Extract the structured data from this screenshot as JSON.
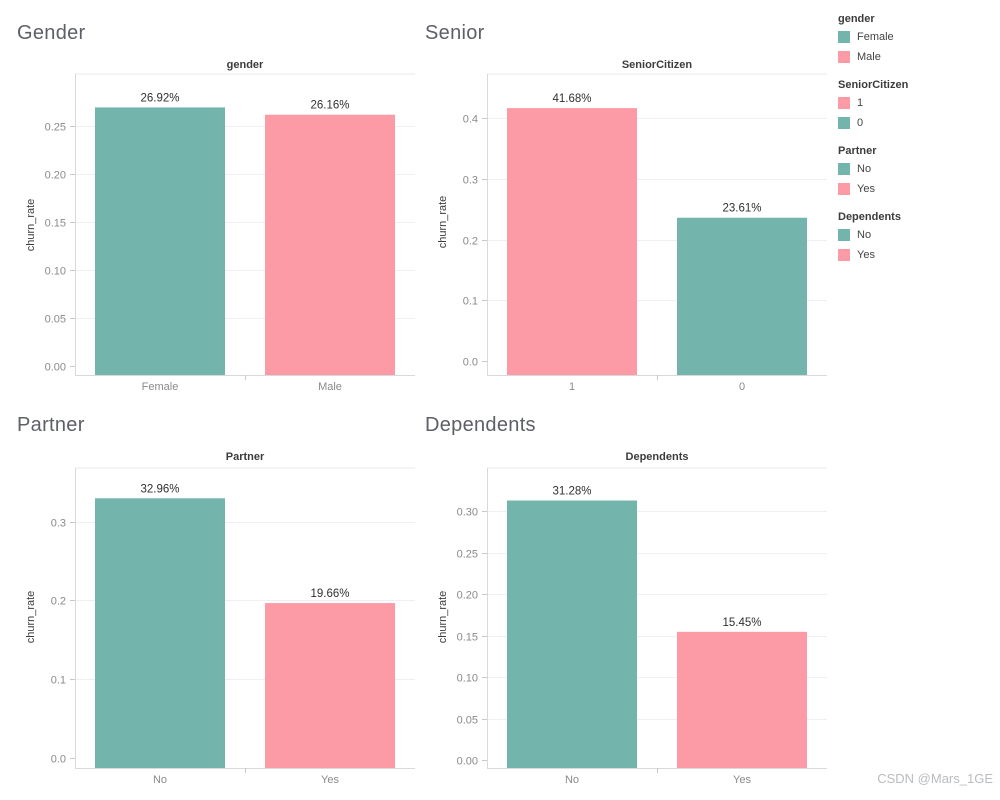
{
  "page": {
    "background": "#ffffff",
    "watermark": "CSDN @Mars_1GE"
  },
  "colors": {
    "teal": "#73b5ad",
    "pink": "#fc9aa6",
    "gridline": "#f0f0f2",
    "axis_line": "#d9d9db",
    "tick_mark": "#c9c9cb",
    "tick_label": "#8a8a8a",
    "bar_label": "#303030",
    "title_gray": "#5d6067"
  },
  "chart_data": [
    {
      "type": "bar",
      "panel_title": "Gender",
      "axis_title": "gender",
      "ylabel": "churn_rate",
      "categories": [
        "Female",
        "Male"
      ],
      "values": [
        0.2692,
        0.2616
      ],
      "bar_labels": [
        "26.92%",
        "26.16%"
      ],
      "bar_colors": [
        "#73b5ad",
        "#fc9aa6"
      ],
      "ylim": [
        0,
        0.304
      ],
      "grid": "horizontal",
      "yticks": [
        {
          "v": 0.0,
          "label": "0.00"
        },
        {
          "v": 0.05,
          "label": "0.05"
        },
        {
          "v": 0.1,
          "label": "0.10"
        },
        {
          "v": 0.15,
          "label": "0.15"
        },
        {
          "v": 0.2,
          "label": "0.20"
        },
        {
          "v": 0.25,
          "label": "0.25"
        }
      ]
    },
    {
      "type": "bar",
      "panel_title": "Senior",
      "axis_title": "SeniorCitizen",
      "ylabel": "churn_rate",
      "categories": [
        "1",
        "0"
      ],
      "values": [
        0.4168,
        0.2361
      ],
      "bar_labels": [
        "41.68%",
        "23.61%"
      ],
      "bar_colors": [
        "#fc9aa6",
        "#73b5ad"
      ],
      "ylim": [
        0,
        0.473
      ],
      "grid": "horizontal",
      "yticks": [
        {
          "v": 0.0,
          "label": "0.0"
        },
        {
          "v": 0.1,
          "label": "0.1"
        },
        {
          "v": 0.2,
          "label": "0.2"
        },
        {
          "v": 0.3,
          "label": "0.3"
        },
        {
          "v": 0.4,
          "label": "0.4"
        }
      ]
    },
    {
      "type": "bar",
      "panel_title": "Partner",
      "axis_title": "Partner",
      "ylabel": "churn_rate",
      "categories": [
        "No",
        "Yes"
      ],
      "values": [
        0.3296,
        0.1966
      ],
      "bar_labels": [
        "32.96%",
        "19.66%"
      ],
      "bar_colors": [
        "#73b5ad",
        "#fc9aa6"
      ],
      "ylim": [
        0,
        0.368
      ],
      "grid": "horizontal",
      "yticks": [
        {
          "v": 0.0,
          "label": "0.0"
        },
        {
          "v": 0.1,
          "label": "0.1"
        },
        {
          "v": 0.2,
          "label": "0.2"
        },
        {
          "v": 0.3,
          "label": "0.3"
        }
      ]
    },
    {
      "type": "bar",
      "panel_title": "Dependents",
      "axis_title": "Dependents",
      "ylabel": "churn_rate",
      "categories": [
        "No",
        "Yes"
      ],
      "values": [
        0.3128,
        0.1545
      ],
      "bar_labels": [
        "31.28%",
        "15.45%"
      ],
      "bar_colors": [
        "#73b5ad",
        "#fc9aa6"
      ],
      "ylim": [
        0,
        0.352
      ],
      "grid": "horizontal",
      "yticks": [
        {
          "v": 0.0,
          "label": "0.00"
        },
        {
          "v": 0.05,
          "label": "0.05"
        },
        {
          "v": 0.1,
          "label": "0.10"
        },
        {
          "v": 0.15,
          "label": "0.15"
        },
        {
          "v": 0.2,
          "label": "0.20"
        },
        {
          "v": 0.25,
          "label": "0.25"
        },
        {
          "v": 0.3,
          "label": "0.30"
        }
      ]
    }
  ],
  "legend": {
    "position": "right",
    "groups": [
      {
        "title": "gender",
        "items": [
          {
            "label": "Female",
            "color": "#73b5ad"
          },
          {
            "label": "Male",
            "color": "#fc9aa6"
          }
        ]
      },
      {
        "title": "SeniorCitizen",
        "items": [
          {
            "label": "1",
            "color": "#fc9aa6"
          },
          {
            "label": "0",
            "color": "#73b5ad"
          }
        ]
      },
      {
        "title": "Partner",
        "items": [
          {
            "label": "No",
            "color": "#73b5ad"
          },
          {
            "label": "Yes",
            "color": "#fc9aa6"
          }
        ]
      },
      {
        "title": "Dependents",
        "items": [
          {
            "label": "No",
            "color": "#73b5ad"
          },
          {
            "label": "Yes",
            "color": "#fc9aa6"
          }
        ]
      }
    ]
  }
}
